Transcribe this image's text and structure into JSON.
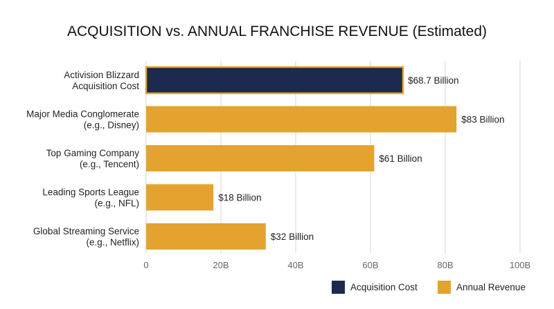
{
  "chart_data": {
    "type": "bar",
    "orientation": "horizontal",
    "title": "ACQUISITION vs. ANNUAL FRANCHISE REVENUE (Estimated)",
    "xlabel": "",
    "ylabel": "",
    "xlim": [
      0,
      100
    ],
    "ticks": [
      {
        "value": 0,
        "label": "0"
      },
      {
        "value": 20,
        "label": "20B"
      },
      {
        "value": 40,
        "label": "40B"
      },
      {
        "value": 60,
        "label": "60B"
      },
      {
        "value": 80,
        "label": "80B"
      },
      {
        "value": 100,
        "label": "100B"
      }
    ],
    "grid": true,
    "legend_position": "bottom-right",
    "bars": [
      {
        "category": [
          "Activision Blizzard",
          "Acquisition Cost"
        ],
        "value": 68.7,
        "label": "$68.7 Billion",
        "series": "Acquisition Cost"
      },
      {
        "category": [
          "Major Media Conglomerate",
          "(e.g., Disney)"
        ],
        "value": 83,
        "label": "$83 Billion",
        "series": "Annual Revenue"
      },
      {
        "category": [
          "Top Gaming Company",
          "(e.g., Tencent)"
        ],
        "value": 61,
        "label": "$61 Billion",
        "series": "Annual Revenue"
      },
      {
        "category": [
          "Leading Sports League",
          "(e.g., NFL)"
        ],
        "value": 18,
        "label": "$18 Billion",
        "series": "Annual Revenue"
      },
      {
        "category": [
          "Global Streaming Service",
          "(e.g., Netflix)"
        ],
        "value": 32,
        "label": "$32 Billion",
        "series": "Annual Revenue"
      }
    ],
    "legend": [
      {
        "name": "Acquisition Cost",
        "color": "#1b2a4e"
      },
      {
        "name": "Annual Revenue",
        "color": "#e3a32e"
      }
    ]
  }
}
